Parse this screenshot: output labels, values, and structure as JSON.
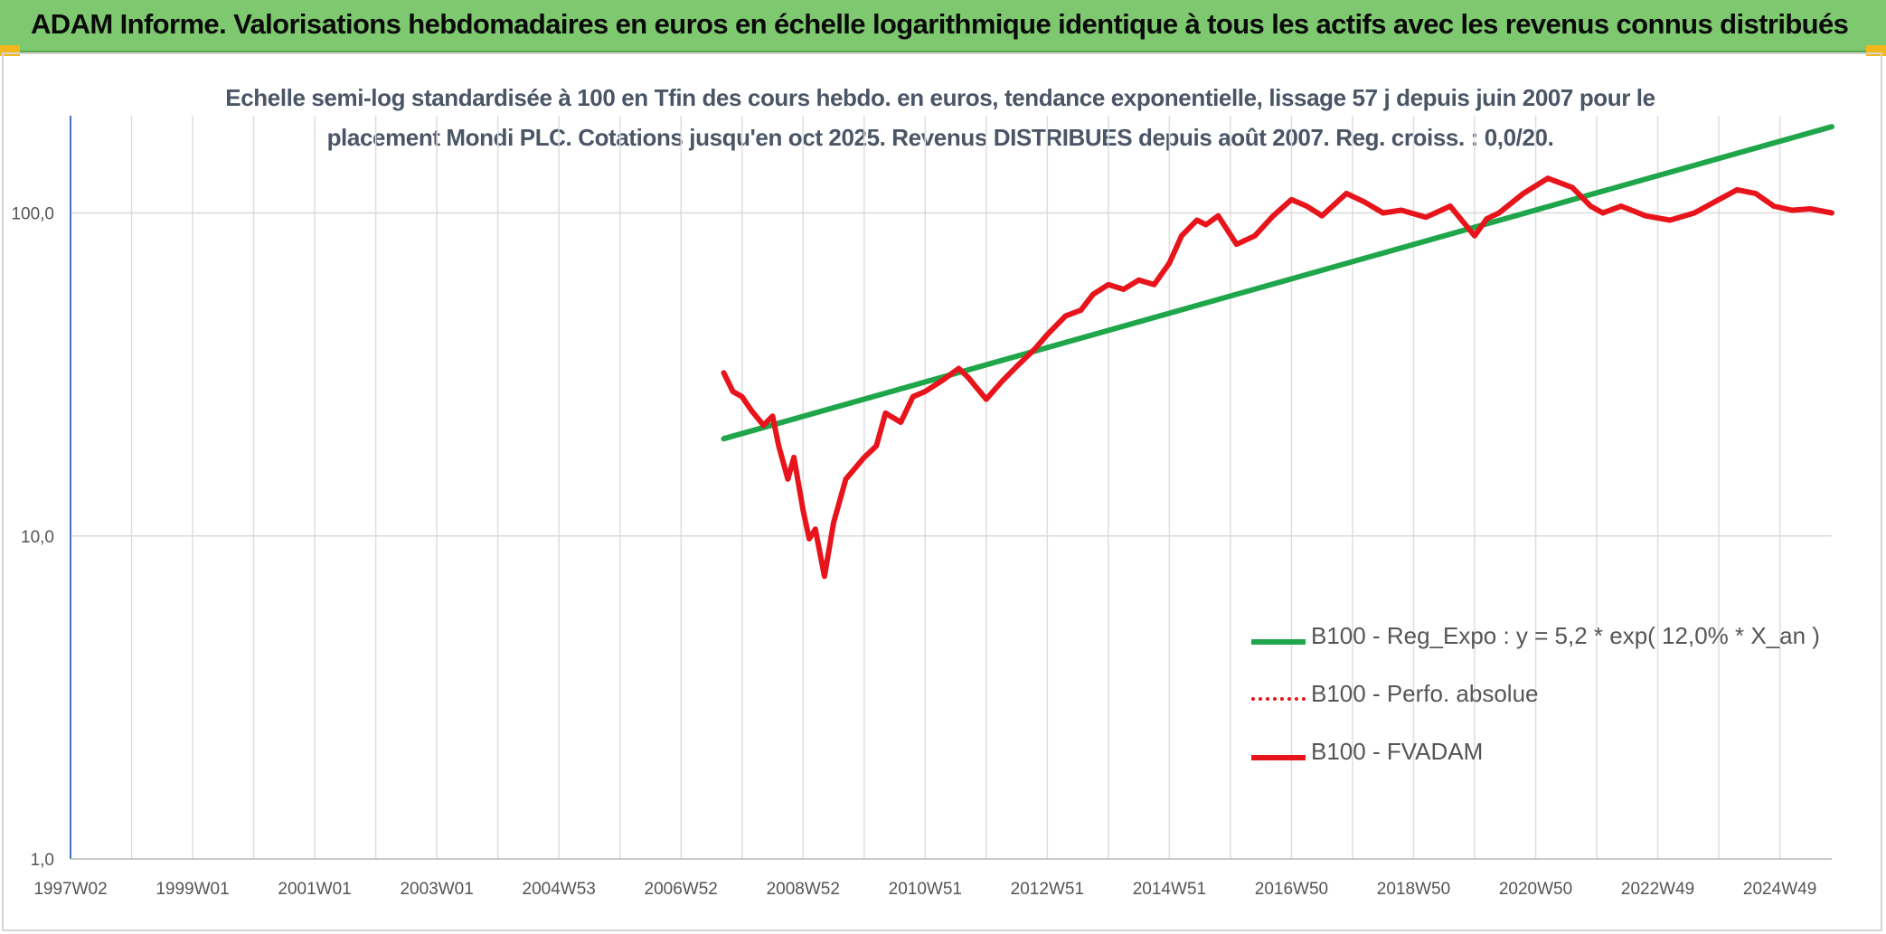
{
  "header": {
    "title": "ADAM Informe. Valorisations hebdomadaires en euros en échelle logarithmique identique à tous les actifs avec les revenus connus distribués"
  },
  "colors": {
    "banner": "#7ec96f",
    "corner_accent": "#f2b81b",
    "series_regression": "#1fa64a",
    "series_perfo": "#e8141b",
    "series_fvadam": "#e8141b"
  },
  "chart_data": {
    "type": "line",
    "title_line1": "Echelle semi-log standardisée à 100 en Tfin des cours hebdo. en euros, tendance exponentielle, lissage 57 j depuis juin 2007 pour le",
    "title_line2": "placement Mondi PLC. Cotations jusqu'en oct 2025. Revenus DISTRIBUES depuis août 2007. Reg. croiss. : 0,0/20.",
    "y_scale": "log",
    "ylim": [
      1,
      200
    ],
    "y_ticks": [
      {
        "value": 100,
        "label": "100,0"
      },
      {
        "value": 10,
        "label": "10,0"
      },
      {
        "value": 1,
        "label": "1,0"
      }
    ],
    "xlim": [
      1997.0,
      2025.85
    ],
    "x_ticks": [
      {
        "value": 1997.0,
        "label": "1997W02"
      },
      {
        "value": 1999.0,
        "label": "1999W01"
      },
      {
        "value": 2001.0,
        "label": "2001W01"
      },
      {
        "value": 2003.0,
        "label": "2003W01"
      },
      {
        "value": 2005.0,
        "label": "2004W53"
      },
      {
        "value": 2007.0,
        "label": "2006W52"
      },
      {
        "value": 2009.0,
        "label": "2008W52"
      },
      {
        "value": 2011.0,
        "label": "2010W51"
      },
      {
        "value": 2013.0,
        "label": "2012W51"
      },
      {
        "value": 2015.0,
        "label": "2014W51"
      },
      {
        "value": 2017.0,
        "label": "2016W50"
      },
      {
        "value": 2019.0,
        "label": "2018W50"
      },
      {
        "value": 2021.0,
        "label": "2020W50"
      },
      {
        "value": 2023.0,
        "label": "2022W49"
      },
      {
        "value": 2025.0,
        "label": "2024W49"
      }
    ],
    "vertical_grid_step_years": 1,
    "legend_position": "bottom-right",
    "series": [
      {
        "name": "B100 - Reg_Expo : y = 5,2 * exp( 12,0% *  X_an )",
        "style": "solid",
        "color": "#1fa64a",
        "x": [
          2007.7,
          2025.85
        ],
        "y": [
          20.0,
          185.0
        ]
      },
      {
        "name": "B100 - Perfo. absolue",
        "style": "dotted",
        "color": "#e8141b",
        "x": [],
        "y": []
      },
      {
        "name": "B100 - FVADAM",
        "style": "solid",
        "color": "#e8141b",
        "x": [
          2007.7,
          2007.85,
          2008.0,
          2008.15,
          2008.35,
          2008.5,
          2008.6,
          2008.75,
          2008.85,
          2009.0,
          2009.1,
          2009.2,
          2009.35,
          2009.5,
          2009.7,
          2010.0,
          2010.2,
          2010.35,
          2010.6,
          2010.8,
          2011.0,
          2011.3,
          2011.55,
          2011.7,
          2012.0,
          2012.25,
          2012.5,
          2012.8,
          2013.0,
          2013.3,
          2013.55,
          2013.75,
          2014.0,
          2014.25,
          2014.5,
          2014.75,
          2015.0,
          2015.2,
          2015.45,
          2015.6,
          2015.8,
          2016.1,
          2016.4,
          2016.7,
          2017.0,
          2017.25,
          2017.5,
          2017.9,
          2018.2,
          2018.5,
          2018.8,
          2019.2,
          2019.6,
          2020.0,
          2020.2,
          2020.4,
          2020.8,
          2021.2,
          2021.6,
          2021.9,
          2022.1,
          2022.4,
          2022.8,
          2023.2,
          2023.6,
          2024.0,
          2024.3,
          2024.6,
          2024.9,
          2025.2,
          2025.5,
          2025.85
        ],
        "y": [
          32.0,
          28.0,
          27.0,
          24.5,
          22.0,
          23.5,
          19.0,
          15.0,
          17.5,
          12.0,
          9.8,
          10.5,
          7.5,
          11.0,
          15.0,
          17.5,
          19.0,
          24.0,
          22.5,
          27.0,
          28.0,
          30.5,
          33.0,
          31.0,
          26.5,
          30.0,
          33.5,
          38.0,
          42.0,
          48.0,
          50.0,
          56.0,
          60.0,
          58.0,
          62.0,
          60.0,
          70.0,
          85.0,
          95.0,
          92.0,
          98.0,
          80.0,
          85.0,
          98.0,
          110.0,
          105.0,
          98.0,
          115.0,
          108.0,
          100.0,
          102.0,
          97.0,
          105.0,
          85.0,
          96.0,
          100.0,
          115.0,
          128.0,
          120.0,
          105.0,
          100.0,
          105.0,
          98.0,
          95.0,
          100.0,
          110.0,
          118.0,
          115.0,
          105.0,
          102.0,
          103.0,
          100.0
        ]
      }
    ]
  }
}
